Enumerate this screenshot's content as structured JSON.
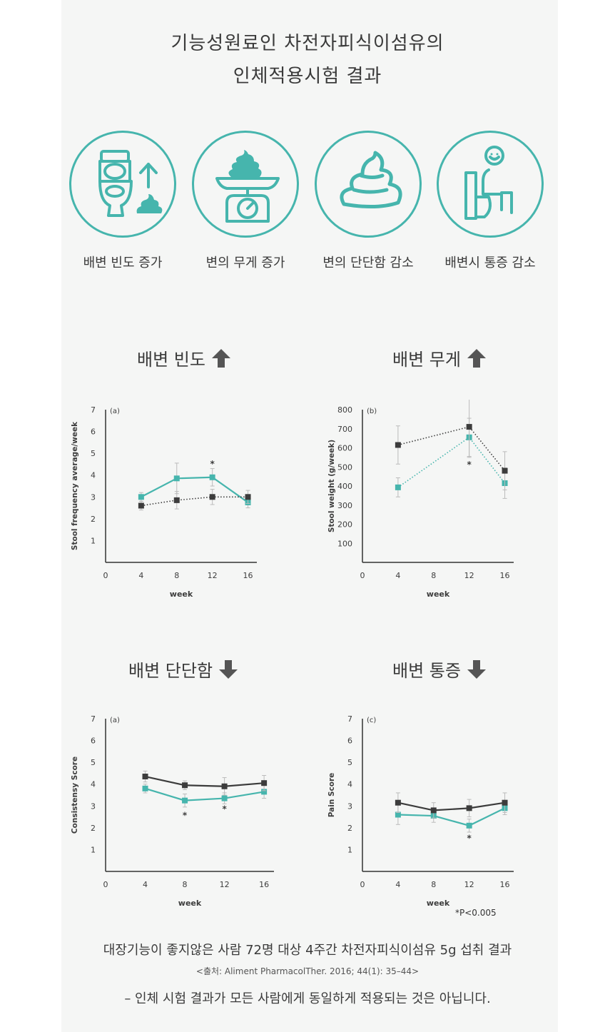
{
  "title": {
    "line1": "기능성원료인 차전자피식이섬유의",
    "line2": "인체적용시험 결과"
  },
  "icons": [
    {
      "label": "배변 빈도 증가",
      "icon": "toilet-arrow-icon"
    },
    {
      "label": "변의 무게 증가",
      "icon": "scale-icon"
    },
    {
      "label": "변의 단단함 감소",
      "icon": "poop-icon"
    },
    {
      "label": "배변시 통증 감소",
      "icon": "person-toilet-icon"
    }
  ],
  "colors": {
    "teal": "#46b5ad",
    "dark": "#3c3c3c",
    "arrow": "#555555"
  },
  "sections": [
    {
      "title": "배변 빈도",
      "arrow": "up"
    },
    {
      "title": "배변 무게",
      "arrow": "up"
    },
    {
      "title": "배변 단단함",
      "arrow": "down"
    },
    {
      "title": "배변 통증",
      "arrow": "down"
    }
  ],
  "chart_data": [
    {
      "type": "line",
      "panel": "(a)",
      "xlabel": "week",
      "ylabel": "Stool frequency average/week",
      "xticks": [
        0,
        4,
        8,
        12,
        16
      ],
      "yticks": [
        1,
        2,
        3,
        4,
        5,
        6,
        7
      ],
      "xlim": [
        0,
        17
      ],
      "ylim": [
        0,
        7
      ],
      "series": [
        {
          "color": "teal",
          "style": "solid",
          "marker": "square",
          "x": [
            4,
            8,
            12,
            16
          ],
          "y": [
            3.0,
            3.85,
            3.9,
            2.75
          ],
          "err": [
            0.2,
            0.7,
            0.4,
            0.25
          ]
        },
        {
          "color": "dark",
          "style": "dotted",
          "marker": "square",
          "x": [
            4,
            8,
            12,
            16
          ],
          "y": [
            2.6,
            2.85,
            3.0,
            3.0
          ],
          "err": [
            0.2,
            0.4,
            0.35,
            0.3
          ]
        }
      ],
      "annotations": [
        {
          "x": 12,
          "y": 4.55,
          "text": "*"
        }
      ]
    },
    {
      "type": "line",
      "panel": "(b)",
      "xlabel": "week",
      "ylabel": "Stool weight (g/week)",
      "xticks": [
        0,
        4,
        8,
        12,
        16
      ],
      "yticks": [
        100,
        200,
        300,
        400,
        500,
        600,
        700,
        800
      ],
      "xlim": [
        0,
        17
      ],
      "ylim": [
        0,
        800
      ],
      "series": [
        {
          "color": "teal",
          "style": "dotted",
          "marker": "square",
          "x": [
            4,
            12,
            16
          ],
          "y": [
            393,
            655,
            415
          ],
          "err": [
            50,
            100,
            80
          ]
        },
        {
          "color": "dark",
          "style": "dotted",
          "marker": "square",
          "x": [
            4,
            12,
            16
          ],
          "y": [
            615,
            710,
            480
          ],
          "err": [
            100,
            160,
            100
          ]
        }
      ],
      "annotations": [
        {
          "x": 12,
          "y": 515,
          "text": "*"
        }
      ]
    },
    {
      "type": "line",
      "panel": "(a)",
      "xlabel": "week",
      "ylabel": "Consistensy Score",
      "xticks": [
        0,
        4,
        8,
        12,
        16
      ],
      "yticks": [
        1,
        2,
        3,
        4,
        5,
        6,
        7
      ],
      "xlim": [
        0,
        17
      ],
      "ylim": [
        0,
        7
      ],
      "series": [
        {
          "color": "teal",
          "style": "solid",
          "marker": "square",
          "x": [
            4,
            8,
            12,
            16
          ],
          "y": [
            3.8,
            3.25,
            3.35,
            3.65
          ],
          "err": [
            0.2,
            0.3,
            0.25,
            0.3
          ]
        },
        {
          "color": "dark",
          "style": "solid",
          "marker": "square",
          "x": [
            4,
            8,
            12,
            16
          ],
          "y": [
            4.35,
            3.95,
            3.9,
            4.05
          ],
          "err": [
            0.25,
            0.2,
            0.4,
            0.35
          ]
        }
      ],
      "annotations": [
        {
          "x": 8,
          "y": 2.6,
          "text": "*"
        },
        {
          "x": 12,
          "y": 2.9,
          "text": "*"
        }
      ]
    },
    {
      "type": "line",
      "panel": "(c)",
      "xlabel": "week",
      "ylabel": "Pain Score",
      "xticks": [
        0,
        4,
        8,
        12,
        16
      ],
      "yticks": [
        1,
        2,
        3,
        4,
        5,
        6,
        7
      ],
      "xlim": [
        0,
        17
      ],
      "ylim": [
        0,
        7
      ],
      "series": [
        {
          "color": "teal",
          "style": "solid",
          "marker": "square",
          "x": [
            4,
            8,
            12,
            16
          ],
          "y": [
            2.6,
            2.55,
            2.1,
            2.9
          ],
          "err": [
            0.45,
            0.3,
            0.3,
            0.3
          ]
        },
        {
          "color": "dark",
          "style": "solid",
          "marker": "square",
          "x": [
            4,
            8,
            12,
            16
          ],
          "y": [
            3.15,
            2.8,
            2.9,
            3.15
          ],
          "err": [
            0.45,
            0.35,
            0.4,
            0.45
          ]
        }
      ],
      "annotations": [
        {
          "x": 12,
          "y": 1.55,
          "text": "*"
        }
      ],
      "footnote": "*P<0.005"
    }
  ],
  "bottom": {
    "main": "대장기능이 좋지않은 사람 72명 대상 4주간 차전자피식이섬유 5g 섭취 결과",
    "source": "<출처: Aliment PharmacolTher. 2016; 44(1): 35–44>",
    "note": "– 인체 시험 결과가 모든 사람에게 동일하게 적용되는 것은 아닙니다."
  }
}
